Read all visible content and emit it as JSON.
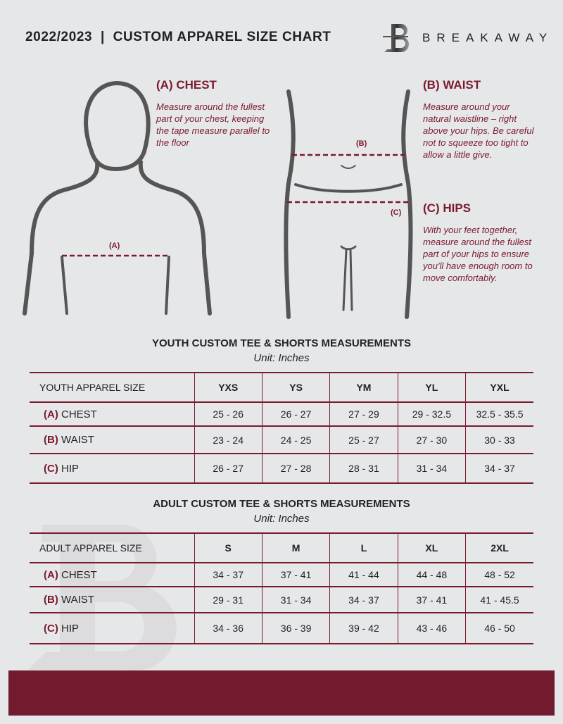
{
  "header": {
    "title": "2022/2023  |  CUSTOM APPAREL SIZE CHART",
    "brand": "BREAKAWAY",
    "logo_letter": "B"
  },
  "colors": {
    "accent": "#7a1a2e",
    "footer": "#721a2e",
    "background": "#e6e7e9"
  },
  "chest": {
    "heading": "(A) CHEST",
    "text": "Measure around the fullest part of your chest, keeping the tape measure parallel to the floor",
    "marker": "(A)"
  },
  "waist": {
    "heading": "(B) WAIST",
    "text": "Measure around your natural waistline – right above your hips. Be careful not to squeeze too tight to allow a little give.",
    "marker": "(B)"
  },
  "hips": {
    "heading": "(C) HIPS",
    "text": "With your feet together, measure around the fullest part of your hips to ensure you'll have enough room to move comfortably.",
    "marker": "(C)"
  },
  "youth": {
    "title": "YOUTH CUSTOM TEE & SHORTS MEASUREMENTS",
    "unit": "Unit: Inches",
    "header": "YOUTH APPAREL SIZE",
    "sizes": [
      "YXS",
      "YS",
      "YM",
      "YL",
      "YXL"
    ],
    "rows": [
      {
        "label": "(A)",
        "name": "CHEST",
        "values": [
          "25 - 26",
          "26 - 27",
          "27 - 29",
          "29 - 32.5",
          "32.5 - 35.5"
        ]
      },
      {
        "label": "(B)",
        "name": "WAIST",
        "values": [
          "23 - 24",
          "24 - 25",
          "25 - 27",
          "27 - 30",
          "30 - 33"
        ]
      },
      {
        "label": "(C)",
        "name": "HIP",
        "values": [
          "26 - 27",
          "27 - 28",
          "28 - 31",
          "31 - 34",
          "34 - 37"
        ]
      }
    ]
  },
  "adult": {
    "title": "ADULT CUSTOM TEE & SHORTS MEASUREMENTS",
    "unit": "Unit: Inches",
    "header": "ADULT APPAREL SIZE",
    "sizes": [
      "S",
      "M",
      "L",
      "XL",
      "2XL"
    ],
    "rows": [
      {
        "label": "(A)",
        "name": "CHEST",
        "values": [
          "34 - 37",
          "37 - 41",
          "41 - 44",
          "44 - 48",
          "48 - 52"
        ]
      },
      {
        "label": "(B)",
        "name": "WAIST",
        "values": [
          "29 - 31",
          "31 - 34",
          "34 - 37",
          "37 - 41",
          "41 - 45.5"
        ]
      },
      {
        "label": "(C)",
        "name": "HIP",
        "values": [
          "34 - 36",
          "36 - 39",
          "39 - 42",
          "43 - 46",
          "46 - 50"
        ]
      }
    ]
  }
}
